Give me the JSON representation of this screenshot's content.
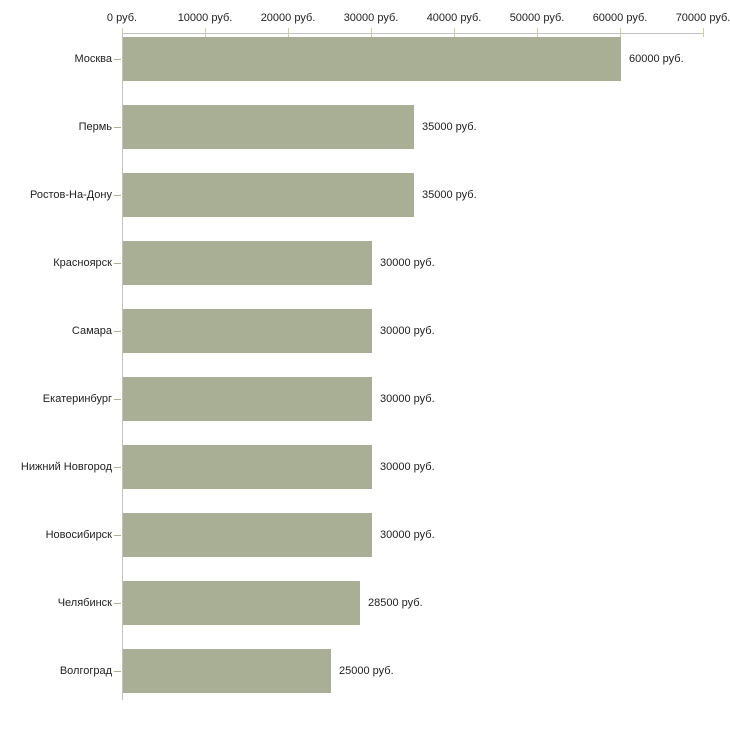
{
  "chart_data": {
    "type": "bar",
    "orientation": "horizontal",
    "title": "",
    "unit": "руб.",
    "categories": [
      "Москва",
      "Пермь",
      "Ростов-На-Дону",
      "Красноярск",
      "Самара",
      "Екатеринбург",
      "Нижний Новгород",
      "Новосибирск",
      "Челябинск",
      "Волгоград"
    ],
    "values": [
      60000,
      35000,
      35000,
      30000,
      30000,
      30000,
      30000,
      30000,
      28500,
      25000
    ],
    "value_labels": [
      "60000 руб.",
      "35000 руб.",
      "35000 руб.",
      "30000 руб.",
      "30000 руб.",
      "30000 руб.",
      "30000 руб.",
      "30000 руб.",
      "28500 руб.",
      "25000 руб."
    ],
    "x_axis": {
      "position": "top",
      "min": 0,
      "max": 70000,
      "tick_step": 10000,
      "tick_labels": [
        "0 руб.",
        "10000 руб.",
        "20000 руб.",
        "30000 руб.",
        "40000 руб.",
        "50000 руб.",
        "60000 руб.",
        "70000 руб."
      ]
    },
    "y_axis": {
      "position": "left"
    },
    "grid": false,
    "legend": false,
    "colors": {
      "bar": "#a9af95",
      "axis_line": "#c2c2c2",
      "axis_tick": "#cfcf9f",
      "category_tick": "#b3b398",
      "text": "#222222",
      "background": "#ffffff"
    }
  }
}
